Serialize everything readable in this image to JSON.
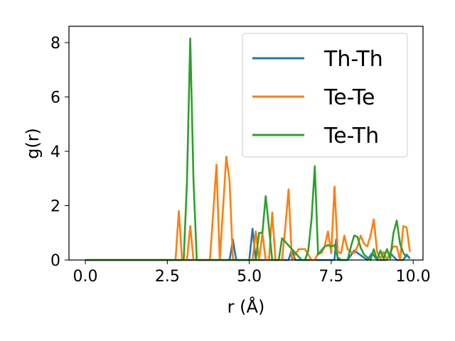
{
  "chart_data": {
    "type": "line",
    "xlabel": "r (Å)",
    "ylabel": "g(r)",
    "xlim": [
      -0.5,
      10.3
    ],
    "ylim": [
      0,
      8.6
    ],
    "xticks": [
      0.0,
      2.5,
      5.0,
      7.5,
      10.0
    ],
    "xtick_labels": [
      "0.0",
      "2.5",
      "5.0",
      "7.5",
      "10.0"
    ],
    "yticks": [
      0,
      2,
      4,
      6,
      8
    ],
    "ytick_labels": [
      "0",
      "2",
      "4",
      "6",
      "8"
    ],
    "legend_position": "top-right",
    "grid": false,
    "series": [
      {
        "name": "Th-Th",
        "color": "#1f77b4",
        "x": [
          0,
          4.4,
          4.5,
          4.6,
          5.0,
          5.1,
          5.2,
          6.2,
          6.3,
          6.4,
          7.6,
          7.65,
          7.7,
          8.0,
          8.2,
          8.6,
          8.75,
          8.9,
          9.2,
          9.3,
          9.5,
          9.7,
          9.8,
          9.9
        ],
        "y": [
          0,
          0,
          0.75,
          0,
          0,
          1.15,
          0,
          0,
          0.4,
          0,
          0,
          0.75,
          0,
          0,
          0.35,
          0,
          0.25,
          0,
          0,
          0.25,
          0,
          0,
          0.2,
          0.05
        ]
      },
      {
        "name": "Te-Te",
        "color": "#ff7f0e",
        "x": [
          0,
          2.75,
          2.85,
          2.95,
          3.1,
          3.2,
          3.3,
          3.8,
          4.0,
          4.1,
          4.3,
          4.4,
          4.5,
          5.1,
          5.2,
          5.3,
          5.4,
          5.5,
          5.6,
          5.7,
          5.8,
          5.9,
          6.0,
          6.1,
          6.2,
          6.3,
          6.5,
          6.6,
          6.7,
          6.8,
          6.9,
          7.0,
          7.1,
          7.2,
          7.3,
          7.4,
          7.5,
          7.6,
          7.7,
          7.8,
          7.9,
          8.0,
          8.1,
          8.2,
          8.3,
          8.4,
          8.5,
          8.6,
          8.7,
          8.8,
          8.9,
          9.0,
          9.1,
          9.2,
          9.3,
          9.4,
          9.5,
          9.6,
          9.7,
          9.8,
          9.9
        ],
        "y": [
          0,
          0,
          1.8,
          0,
          0,
          1.25,
          0,
          0,
          3.5,
          0,
          3.8,
          2.9,
          0,
          0,
          1.05,
          0,
          1.0,
          0,
          0,
          1.75,
          0,
          0,
          0,
          1.2,
          2.6,
          0,
          0.4,
          0.4,
          0.4,
          0.2,
          0,
          0,
          0.25,
          0.25,
          0.5,
          1.05,
          0.25,
          2.7,
          0.3,
          0.25,
          0.9,
          0.4,
          0.3,
          0.25,
          0.5,
          0.9,
          0.6,
          0.5,
          0.9,
          1.5,
          0.3,
          0.05,
          0.3,
          0,
          0.3,
          0.5,
          0.5,
          0,
          1.25,
          1.2,
          0.3
        ]
      },
      {
        "name": "Te-Th",
        "color": "#2ca02c",
        "x": [
          0,
          3.0,
          3.1,
          3.2,
          3.3,
          3.4,
          5.2,
          5.3,
          5.4,
          5.5,
          5.6,
          5.7,
          5.8,
          5.9,
          6.0,
          6.6,
          6.7,
          6.8,
          6.9,
          7.0,
          7.1,
          7.3,
          7.4,
          7.5,
          7.6,
          7.7,
          7.8,
          8.0,
          8.1,
          8.2,
          8.3,
          8.4,
          8.5,
          8.6,
          8.7,
          8.8,
          8.9,
          9.0,
          9.1,
          9.2,
          9.3,
          9.4,
          9.5,
          9.6,
          9.7,
          9.8
        ],
        "y": [
          0,
          0,
          2.9,
          8.15,
          2.9,
          0,
          0,
          1.0,
          1.0,
          2.35,
          1.2,
          0,
          0,
          0,
          0.8,
          0,
          0,
          0.35,
          1.5,
          3.45,
          0.2,
          0.5,
          0.55,
          0.5,
          0.55,
          0.1,
          0,
          0,
          0.5,
          0.9,
          0.85,
          0.45,
          0.2,
          0.1,
          0,
          0.4,
          0,
          0.35,
          0.05,
          0.4,
          0.05,
          1.0,
          1.45,
          0.6,
          0.25,
          0.1
        ]
      }
    ]
  }
}
